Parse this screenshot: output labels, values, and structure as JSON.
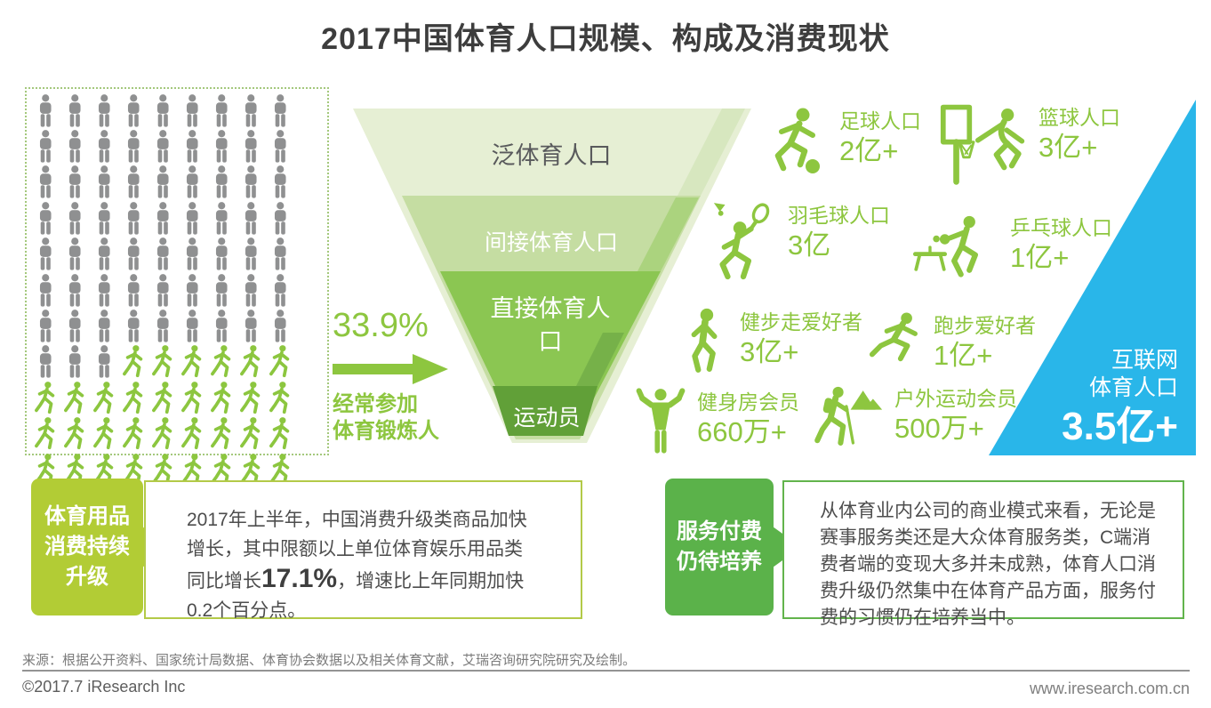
{
  "title": "2017中国体育人口规模、构成及消费现状",
  "population_grid": {
    "total": 100,
    "gray_count": 66,
    "green_count": 34,
    "gray_color": "#8f9091",
    "green_color": "#8cc63f"
  },
  "exercise_rate": {
    "percent": "33.9%",
    "label_line1": "经常参加",
    "label_line2": "体育锻炼人"
  },
  "funnel": {
    "layers": [
      {
        "label": "泛体育人口",
        "color": "#e6efd4",
        "text_color": "#595a5c"
      },
      {
        "label": "间接体育人口",
        "color": "#c5dda2",
        "text_color": "#ffffff"
      },
      {
        "label": "直接体育人口",
        "color": "#8bc652",
        "text_color": "#ffffff"
      },
      {
        "label": "运动员",
        "color": "#61a038",
        "text_color": "#ffffff"
      }
    ]
  },
  "sports_stats": [
    {
      "icon": "soccer-icon",
      "label": "足球人口",
      "value": "2亿+"
    },
    {
      "icon": "basketball-icon",
      "label": "篮球人口",
      "value": "3亿+"
    },
    {
      "icon": "badminton-icon",
      "label": "羽毛球人口",
      "value": "3亿"
    },
    {
      "icon": "pingpong-icon",
      "label": "乒乓球人口",
      "value": "1亿+"
    },
    {
      "icon": "walking-icon",
      "label": "健步走爱好者",
      "value": "3亿+"
    },
    {
      "icon": "running-icon",
      "label": "跑步爱好者",
      "value": "1亿+"
    },
    {
      "icon": "gym-icon",
      "label": "健身房会员",
      "value": "660万+"
    },
    {
      "icon": "hiking-icon",
      "label": "户外运动会员",
      "value": "500万+"
    }
  ],
  "internet_population": {
    "label_line1": "互联网",
    "label_line2": "体育人口",
    "value": "3.5亿+",
    "color": "#29b6e9"
  },
  "callouts": [
    {
      "tag_lines": [
        "体育用品",
        "消费持续",
        "升级"
      ],
      "tag_color": "#b2cc35",
      "border_color": "#b3ca48",
      "text_before": "2017年上半年，中国消费升级类商品加快增长，其中限额以上单位体育娱乐用品类同比增长",
      "highlight": "17.1%",
      "text_after": "，增速比上年同期加快0.2个百分点。"
    },
    {
      "tag_lines": [
        "服务付费",
        "仍待培养"
      ],
      "tag_color": "#5bb24a",
      "border_color": "#62b44c",
      "text": "从体育业内公司的商业模式来看，无论是赛事服务类还是大众体育服务类，C端消费者端的变现大多并未成熟，体育人口消费升级仍然集中在体育产品方面，服务付费的习惯仍在培养当中。"
    }
  ],
  "footer": {
    "source": "来源：根据公开资料、国家统计局数据、体育协会数据以及相关体育文献，艾瑞咨询研究院研究及绘制。",
    "copyright": "©2017.7 iResearch Inc",
    "website": "www.iresearch.com.cn"
  }
}
